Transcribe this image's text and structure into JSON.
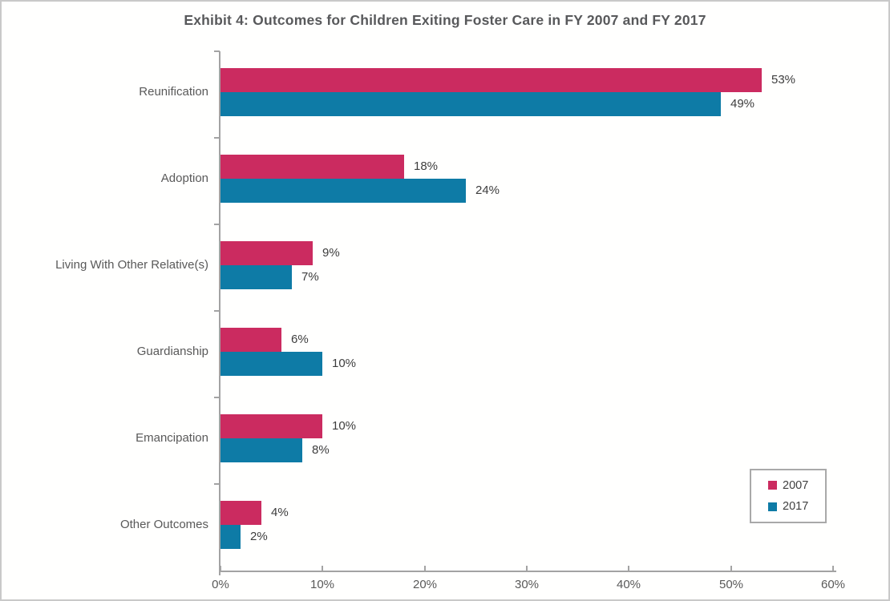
{
  "chart_data": {
    "type": "bar",
    "orientation": "horizontal",
    "title": "Exhibit 4: Outcomes for Children Exiting Foster Care in FY 2007 and FY 2017",
    "categories": [
      "Reunification",
      "Adoption",
      "Living With Other Relative(s)",
      "Guardianship",
      "Emancipation",
      "Other Outcomes"
    ],
    "series": [
      {
        "name": "2007",
        "color": "#cb2b60",
        "values": [
          53,
          18,
          9,
          6,
          10,
          4
        ]
      },
      {
        "name": "2017",
        "color": "#0e7ba6",
        "values": [
          49,
          24,
          7,
          10,
          8,
          2
        ]
      }
    ],
    "data_labels": {
      "2007": [
        "53%",
        "18%",
        "9%",
        "6%",
        "10%",
        "4%"
      ],
      "2017": [
        "49%",
        "24%",
        "7%",
        "10%",
        "8%",
        "2%"
      ]
    },
    "value_suffix": "%",
    "x_tick_labels": [
      "0%",
      "10%",
      "20%",
      "30%",
      "40%",
      "50%",
      "60%"
    ],
    "xlim": [
      0,
      60
    ],
    "xlabel": "",
    "ylabel": "",
    "grid": false,
    "legend_position": "bottom-right",
    "legend_entries": [
      "2007",
      "2017"
    ]
  },
  "styles": {
    "series_2007_color": "#cb2b60",
    "series_2017_color": "#0e7ba6",
    "axis_color": "#a3a3a3",
    "title_color": "#58595b",
    "label_color": "#595959",
    "value_label_color": "#3d3d3d",
    "figure_border_color": "#c9c9c9"
  }
}
